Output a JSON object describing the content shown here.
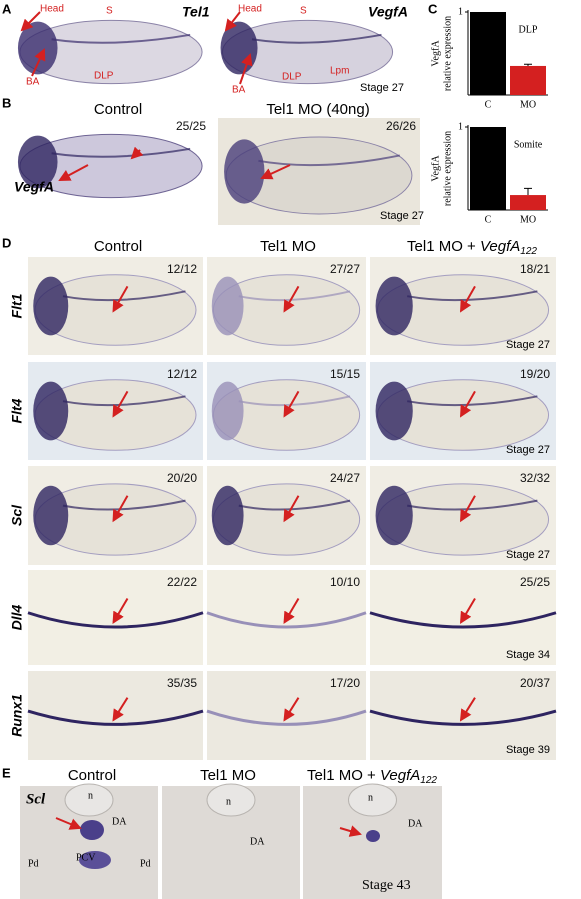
{
  "figure": {
    "A": {
      "label": "A",
      "genes": [
        "Tel1",
        "VegfA"
      ],
      "left_annotations": [
        "Head",
        "S",
        "BA",
        "DLP"
      ],
      "right_annotations": [
        "Head",
        "S",
        "BA",
        "DLP",
        "Lpm"
      ],
      "stage": "Stage 27"
    },
    "B": {
      "label": "B",
      "conditions": [
        "Control",
        "Tel1 MO (40ng)"
      ],
      "counts": [
        "25/25",
        "26/26"
      ],
      "gene": "VegfA",
      "stage": "Stage 27"
    },
    "C": {
      "label": "C"
    },
    "D": {
      "label": "D",
      "headers": [
        "Control",
        "Tel1 MO",
        {
          "prefix": "Tel1 MO + ",
          "gene": "VegfA",
          "subscript": "122"
        }
      ],
      "rows": [
        {
          "gene": "Flt1",
          "counts": [
            "12/12",
            "27/27",
            "18/21"
          ],
          "stage": "Stage 27"
        },
        {
          "gene": "Flt4",
          "counts": [
            "12/12",
            "15/15",
            "19/20"
          ],
          "stage": "Stage 27"
        },
        {
          "gene": "Scl",
          "counts": [
            "20/20",
            "24/27",
            "32/32"
          ],
          "stage": "Stage 27"
        },
        {
          "gene": "Dll4",
          "counts": [
            "22/22",
            "10/10",
            "25/25"
          ],
          "stage": "Stage 34"
        },
        {
          "gene": "Runx1",
          "counts": [
            "35/35",
            "17/20",
            "20/37"
          ],
          "stage": "Stage 39"
        }
      ]
    },
    "E": {
      "label": "E",
      "headers": [
        "Control",
        "Tel1 MO",
        {
          "prefix": "Tel1 MO + ",
          "gene": "VegfA",
          "subscript": "122"
        }
      ],
      "gene": "Scl",
      "control_labels": [
        "n",
        "DA",
        "Pd",
        "PCV",
        "Pd"
      ],
      "mo_labels": [
        "n",
        "DA"
      ],
      "rescue_labels": [
        "n",
        "DA"
      ],
      "stage": "Stage 43"
    }
  },
  "chart_data": [
    {
      "type": "bar",
      "title": "DLP",
      "y_label": [
        "VegfA",
        "relative expression"
      ],
      "categories": [
        "C",
        "MO"
      ],
      "values": [
        1,
        0.35
      ],
      "errors": [
        0,
        0.02
      ],
      "colors": [
        "#000000",
        "#d42020"
      ],
      "ylim": [
        0,
        1
      ],
      "yticks": [
        1
      ]
    },
    {
      "type": "bar",
      "title": "Somite",
      "y_label": [
        "VegfA",
        "relative expression"
      ],
      "categories": [
        "C",
        "MO"
      ],
      "values": [
        1,
        0.18
      ],
      "errors": [
        0,
        0.08
      ],
      "colors": [
        "#000000",
        "#d42020"
      ],
      "ylim": [
        0,
        1
      ],
      "yticks": [
        1
      ]
    }
  ]
}
